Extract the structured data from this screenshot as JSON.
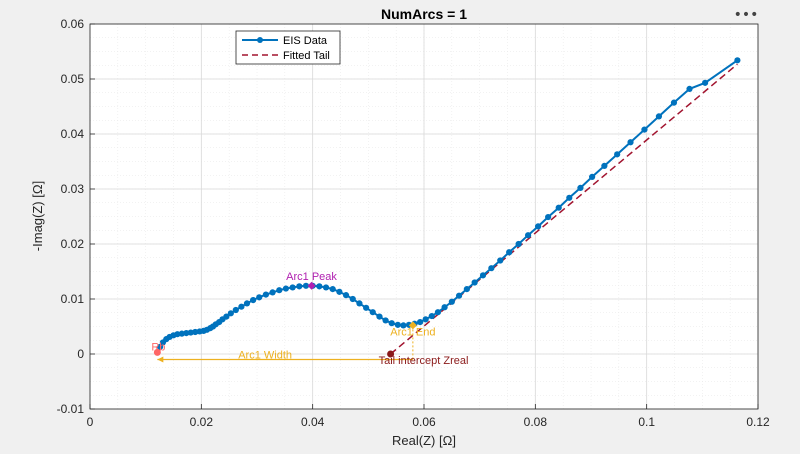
{
  "toolbar": {
    "menu_icon": "more-horizontal-icon",
    "menu_glyph": "•••"
  },
  "chart_data": {
    "type": "line",
    "title": "NumArcs = 1",
    "xlabel": "Real(Z) [Ω]",
    "ylabel": "-Imag(Z) [Ω]",
    "xlim": [
      0,
      0.12
    ],
    "ylim": [
      -0.01,
      0.06
    ],
    "xticks": [
      "0",
      "0.02",
      "0.04",
      "0.06",
      "0.08",
      "0.1",
      "0.12"
    ],
    "yticks": [
      "-0.01",
      "0",
      "0.01",
      "0.02",
      "0.03",
      "0.04",
      "0.05",
      "0.06"
    ],
    "grid": true,
    "legend_placement": "top-left",
    "colors": {
      "eis": "#0072bd",
      "tail": "#a2142f",
      "arc": "#edb120",
      "peak": "#b020b0",
      "rb": "#ff6666",
      "intercept": "#8b1a1a"
    },
    "series": [
      {
        "name": "EIS Data",
        "style": "line-marker",
        "x": [
          0.0121,
          0.0126,
          0.0131,
          0.0137,
          0.0143,
          0.015,
          0.0157,
          0.0165,
          0.0173,
          0.0181,
          0.0189,
          0.0197,
          0.0204,
          0.021,
          0.0216,
          0.0221,
          0.0226,
          0.0232,
          0.0238,
          0.0245,
          0.0253,
          0.0262,
          0.0272,
          0.0282,
          0.0293,
          0.0304,
          0.0316,
          0.0328,
          0.034,
          0.0352,
          0.0364,
          0.0376,
          0.0388,
          0.04,
          0.0412,
          0.0424,
          0.0436,
          0.0448,
          0.046,
          0.0472,
          0.0484,
          0.0496,
          0.0508,
          0.052,
          0.0531,
          0.0542,
          0.0553,
          0.0563,
          0.0573,
          0.0583,
          0.0593,
          0.0603,
          0.0614,
          0.0625,
          0.0637,
          0.065,
          0.0663,
          0.0677,
          0.0691,
          0.0706,
          0.0721,
          0.0737,
          0.0753,
          0.077,
          0.0787,
          0.0805,
          0.0823,
          0.0842,
          0.0861,
          0.0881,
          0.0902,
          0.0924,
          0.0947,
          0.0971,
          0.0996,
          0.1022,
          0.1049,
          0.1077,
          0.1105,
          0.1163
        ],
        "y": [
          0.0003,
          0.0013,
          0.0021,
          0.0027,
          0.0031,
          0.0034,
          0.0036,
          0.0037,
          0.0038,
          0.0039,
          0.004,
          0.0041,
          0.0042,
          0.0044,
          0.0047,
          0.005,
          0.0054,
          0.0058,
          0.0063,
          0.0068,
          0.0074,
          0.008,
          0.0086,
          0.0092,
          0.0098,
          0.0103,
          0.0108,
          0.0112,
          0.0116,
          0.0119,
          0.0121,
          0.0123,
          0.0124,
          0.0124,
          0.0123,
          0.0121,
          0.0118,
          0.0113,
          0.0107,
          0.01,
          0.0092,
          0.0084,
          0.0076,
          0.0068,
          0.0061,
          0.0056,
          0.0053,
          0.0052,
          0.0053,
          0.0055,
          0.0058,
          0.0063,
          0.0069,
          0.0076,
          0.0085,
          0.0095,
          0.0106,
          0.0118,
          0.013,
          0.0143,
          0.0156,
          0.017,
          0.0185,
          0.02,
          0.0216,
          0.0232,
          0.0249,
          0.0266,
          0.0284,
          0.0302,
          0.0322,
          0.0342,
          0.0363,
          0.0385,
          0.0408,
          0.0432,
          0.0457,
          0.0482,
          0.0493,
          0.0534
        ]
      },
      {
        "name": "Fitted Tail",
        "style": "dashed",
        "x": [
          0.054,
          0.1163
        ],
        "y": [
          0.0,
          0.0527
        ]
      }
    ],
    "annotations": [
      {
        "label": "Arc1 Peak",
        "x": 0.0398,
        "y": 0.0124,
        "color": "peak",
        "marker": "diamond"
      },
      {
        "label": "Arc1 End",
        "x": 0.058,
        "y": 0.0052,
        "color": "arc",
        "marker": "diamond"
      },
      {
        "label": "Arc1 Width",
        "x1": 0.0121,
        "x2": 0.058,
        "y": -0.001,
        "color": "arc"
      },
      {
        "label": "Tail intercept Zreal",
        "x": 0.054,
        "y": 0.0,
        "color": "intercept",
        "marker": "circle"
      },
      {
        "label": "Rb",
        "x": 0.0121,
        "y": 0.0003,
        "color": "rb",
        "marker": "circle"
      }
    ]
  }
}
